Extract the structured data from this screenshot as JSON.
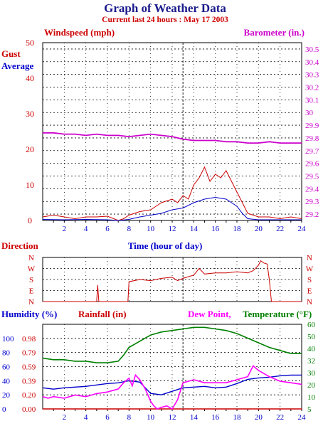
{
  "title": "Graph of Weather Data",
  "subtitle": "Current last 24 hours : May 17 2003",
  "colors": {
    "title": "#1a1a8c",
    "subtitle": "#cc0000",
    "gust": "#cc0000",
    "average": "#0000cc",
    "barometer": "#cc00cc",
    "direction": "#cc0000",
    "humidity": "#0000cc",
    "rainfall": "#cc0000",
    "dew_point": "#ff00ff",
    "temperature": "#008000",
    "axis": "#000000",
    "grid": "#000000"
  },
  "chart_data": [
    {
      "type": "line",
      "panel": "wind",
      "xlabel": "Time (hour of day)",
      "xlim": [
        0,
        24
      ],
      "x_ticks": [
        "2",
        "4",
        "6",
        "8",
        "10",
        "12",
        "14",
        "16",
        "18",
        "20",
        "22",
        "24"
      ],
      "left_axis": {
        "label": "Windspeed (mph)",
        "ylim": [
          0,
          50
        ],
        "ticks": [
          "0",
          "10",
          "20",
          "30",
          "40",
          "50"
        ]
      },
      "right_axis": {
        "label": "Barometer (in.)",
        "ylim": [
          29.15,
          30.55
        ],
        "ticks": [
          "29.2",
          "29.3",
          "29.4",
          "29.5",
          "29.6",
          "29.7",
          "29.8",
          "29.9",
          "30",
          "30.1",
          "30.2",
          "30.3",
          "30.4",
          "30.5"
        ]
      },
      "grid": true,
      "series": [
        {
          "name": "Gust",
          "axis": "left",
          "x": [
            0,
            1,
            2,
            3,
            4,
            5,
            6,
            7,
            7.5,
            8,
            9,
            10,
            10.5,
            11,
            11.5,
            12,
            12.5,
            13,
            13.5,
            14,
            14.5,
            15,
            15.5,
            16,
            16.5,
            17,
            17.5,
            18,
            18.5,
            19,
            20,
            21,
            22,
            23,
            24
          ],
          "y": [
            1,
            1.5,
            1,
            0.5,
            1,
            1,
            1.2,
            0,
            0.5,
            1.5,
            2.5,
            3,
            4,
            5,
            5.5,
            6,
            5,
            7,
            6,
            10,
            12,
            15,
            11,
            13,
            12,
            14,
            11,
            8,
            5,
            2,
            1,
            1,
            0.5,
            1,
            0.5
          ]
        },
        {
          "name": "Average",
          "axis": "left",
          "x": [
            0,
            2,
            4,
            6,
            7,
            8,
            9,
            10,
            11,
            12,
            13,
            14,
            15,
            16,
            17,
            18,
            18.5,
            19,
            20,
            22,
            24
          ],
          "y": [
            0.3,
            0.2,
            0.3,
            0.2,
            0,
            0.3,
            1,
            1.5,
            2,
            3,
            3.5,
            5,
            6,
            6.5,
            6,
            4,
            2,
            0.5,
            0.2,
            0.2,
            0.2
          ]
        },
        {
          "name": "Barometer",
          "axis": "right",
          "x": [
            0,
            1,
            2,
            3,
            4,
            5,
            6,
            7,
            8,
            9,
            10,
            11,
            12,
            13,
            14,
            15,
            16,
            17,
            18,
            19,
            20,
            21,
            22,
            23,
            24
          ],
          "y": [
            29.84,
            29.84,
            29.83,
            29.83,
            29.82,
            29.83,
            29.82,
            29.82,
            29.81,
            29.82,
            29.83,
            29.82,
            29.81,
            29.79,
            29.78,
            29.78,
            29.78,
            29.77,
            29.77,
            29.76,
            29.76,
            29.77,
            29.76,
            29.76,
            29.76
          ]
        }
      ]
    },
    {
      "type": "line",
      "panel": "direction",
      "label": "Direction",
      "xlim": [
        0,
        24
      ],
      "ylim": [
        0,
        4
      ],
      "y_ticks": [
        "N",
        "E",
        "S",
        "W",
        "N"
      ],
      "grid": true,
      "series": [
        {
          "name": "Direction",
          "x": [
            0,
            1,
            2,
            3,
            4,
            5,
            5.1,
            5.2,
            6,
            7,
            7.9,
            8,
            9,
            10,
            11,
            12,
            12.5,
            13,
            14,
            14.5,
            15,
            16,
            17,
            18,
            19,
            19.5,
            20,
            20.2,
            20.5,
            20.8,
            21,
            21.2,
            22,
            23,
            24
          ],
          "y": [
            0,
            0,
            0,
            0,
            0,
            0,
            1.5,
            0,
            0,
            0,
            0,
            1.8,
            2,
            1.9,
            2.1,
            2.2,
            1.9,
            2.1,
            2.4,
            3.0,
            2.5,
            2.6,
            2.6,
            2.7,
            2.6,
            2.8,
            3.3,
            3.7,
            3.5,
            3.4,
            2.0,
            0,
            0,
            0,
            0
          ]
        }
      ]
    },
    {
      "type": "line",
      "panel": "humidity_temperature",
      "xlim": [
        0,
        24
      ],
      "x_ticks": [
        "2",
        "4",
        "6",
        "8",
        "10",
        "12",
        "14",
        "16",
        "18",
        "20",
        "22",
        "24"
      ],
      "left_axis_humidity": {
        "label": "Humidity (%)",
        "ylim": [
          0,
          120
        ],
        "ticks": [
          "0",
          "20",
          "40",
          "60",
          "80",
          "100"
        ]
      },
      "left_axis_rainfall": {
        "label": "Rainfall (in)",
        "ticks": [
          "0.00",
          "0.20",
          "0.39",
          "0.59",
          "0.79",
          "0.98"
        ]
      },
      "right_axis": {
        "label": "Temperature (°F)",
        "ylim": [
          5,
          60
        ],
        "ticks": [
          "5",
          "13",
          "20",
          "28",
          "36",
          "44",
          "52",
          "60"
        ]
      },
      "right_axis_labels": [
        "60",
        "50",
        "40",
        "32",
        "30",
        "20",
        "10",
        "5"
      ],
      "dew_point_label": "Dew Point,",
      "grid": true,
      "series": [
        {
          "name": "Humidity",
          "axis": "left",
          "x": [
            0,
            1,
            2,
            3,
            4,
            5,
            6,
            7,
            8,
            9,
            10,
            11,
            12,
            13,
            14,
            15,
            16,
            17,
            18,
            19,
            20,
            21,
            22,
            23,
            24
          ],
          "y": [
            30,
            28,
            30,
            31,
            32,
            34,
            36,
            37,
            40,
            38,
            22,
            20,
            25,
            30,
            31,
            32,
            30,
            31,
            36,
            42,
            44,
            45,
            47,
            48,
            48
          ]
        },
        {
          "name": "Rainfall",
          "axis": "left",
          "x": [
            0,
            24
          ],
          "y": [
            0,
            0
          ]
        },
        {
          "name": "Dew Point",
          "axis": "right",
          "x": [
            0,
            0.5,
            1,
            2,
            3,
            4,
            5,
            6,
            7,
            7.5,
            8,
            8.3,
            8.6,
            9,
            9.5,
            10,
            10.3,
            10.6,
            11,
            11.5,
            12,
            12.5,
            13,
            13.5,
            14,
            15,
            16,
            17,
            18,
            19,
            19.5,
            20,
            20.5,
            21,
            22,
            23,
            24
          ],
          "y": [
            13,
            12,
            13,
            12,
            14,
            13,
            15,
            16,
            18,
            22,
            25,
            20,
            27,
            24,
            18,
            10,
            7,
            5,
            6,
            7,
            5,
            11,
            22,
            23,
            24,
            22,
            22,
            22,
            24,
            26,
            33,
            30,
            28,
            26,
            23,
            22,
            21
          ]
        },
        {
          "name": "Temperature",
          "axis": "right",
          "x": [
            0,
            1,
            2,
            3,
            4,
            5,
            5.5,
            6,
            7,
            7.5,
            8,
            9,
            10,
            11,
            12,
            13,
            14,
            15,
            16,
            17,
            18,
            19,
            20,
            21,
            22,
            23,
            24
          ],
          "y": [
            38,
            37,
            37,
            36,
            36,
            35,
            35,
            35,
            36,
            40,
            45,
            49,
            53,
            55,
            56,
            57,
            58,
            58,
            57,
            56,
            54,
            51,
            48,
            45,
            43,
            41,
            41
          ]
        }
      ]
    }
  ]
}
